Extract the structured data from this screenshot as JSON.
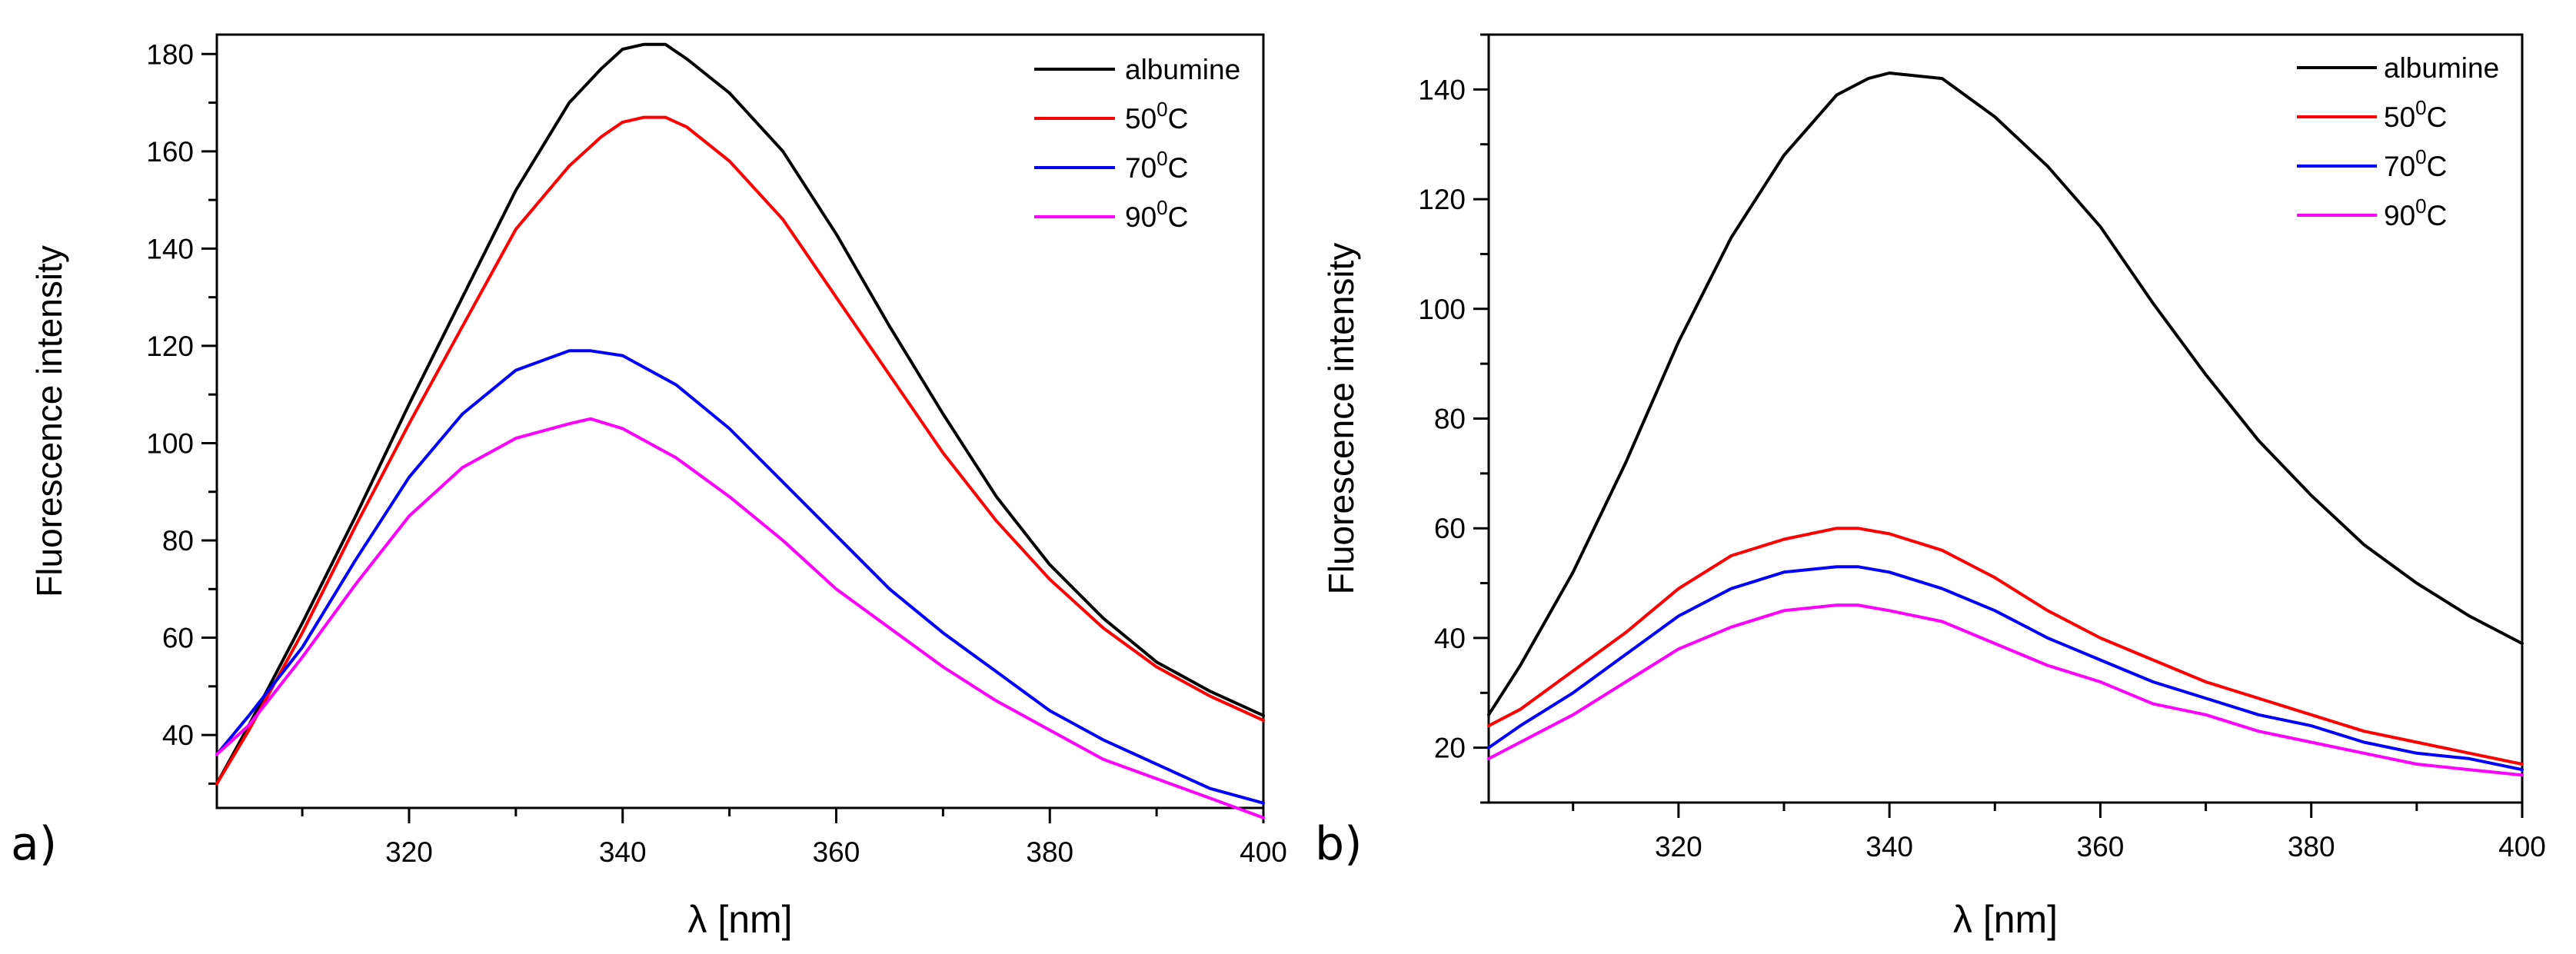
{
  "colors": {
    "albumine": "#000000",
    "c50": "#ff0000",
    "c70": "#0000ff",
    "c90": "#ff00ff"
  },
  "chart_data": [
    {
      "panel_label": "a)",
      "type": "line",
      "title": "",
      "xlabel": "λ [nm]",
      "ylabel": "Fluorescence intensity",
      "xlim": [
        302,
        400
      ],
      "ylim": [
        25,
        184
      ],
      "xticks": [
        320,
        340,
        360,
        380,
        400
      ],
      "yticks": [
        40,
        60,
        80,
        100,
        120,
        140,
        160,
        180
      ],
      "legend_position": "top-right",
      "series": [
        {
          "name": "albumine",
          "label_main": "albumine",
          "label_sup": "",
          "label_tail": "",
          "color_key": "albumine",
          "x": [
            302,
            305,
            310,
            315,
            320,
            325,
            330,
            335,
            338,
            340,
            342,
            344,
            346,
            350,
            355,
            360,
            365,
            370,
            375,
            380,
            385,
            390,
            395,
            400
          ],
          "y": [
            30,
            42,
            63,
            85,
            108,
            130,
            152,
            170,
            177,
            181,
            182,
            182,
            179,
            172,
            160,
            143,
            124,
            106,
            89,
            75,
            64,
            55,
            49,
            44
          ]
        },
        {
          "name": "50°C",
          "label_main": "50",
          "label_sup": "0",
          "label_tail": "C",
          "color_key": "c50",
          "x": [
            302,
            305,
            310,
            315,
            320,
            325,
            330,
            335,
            338,
            340,
            342,
            344,
            346,
            350,
            355,
            360,
            365,
            370,
            375,
            380,
            385,
            390,
            395,
            400
          ],
          "y": [
            30,
            41,
            61,
            83,
            104,
            124,
            144,
            157,
            163,
            166,
            167,
            167,
            165,
            158,
            146,
            130,
            114,
            98,
            84,
            72,
            62,
            54,
            48,
            43
          ]
        },
        {
          "name": "70°C",
          "label_main": "70",
          "label_sup": "0",
          "label_tail": "C",
          "color_key": "c70",
          "x": [
            302,
            305,
            310,
            315,
            320,
            325,
            330,
            335,
            337,
            340,
            345,
            350,
            355,
            360,
            365,
            370,
            375,
            380,
            385,
            390,
            395,
            400
          ],
          "y": [
            36,
            44,
            58,
            76,
            93,
            106,
            115,
            119,
            119,
            118,
            112,
            103,
            92,
            81,
            70,
            61,
            53,
            45,
            39,
            34,
            29,
            26
          ]
        },
        {
          "name": "90°C",
          "label_main": "90",
          "label_sup": "0",
          "label_tail": "C",
          "color_key": "c90",
          "x": [
            302,
            305,
            310,
            315,
            320,
            325,
            330,
            335,
            337,
            340,
            345,
            350,
            355,
            360,
            365,
            370,
            375,
            380,
            385,
            390,
            395,
            400
          ],
          "y": [
            36,
            42,
            56,
            71,
            85,
            95,
            101,
            104,
            105,
            103,
            97,
            89,
            80,
            70,
            62,
            54,
            47,
            41,
            35,
            31,
            27,
            23
          ]
        }
      ]
    },
    {
      "panel_label": "b)",
      "type": "line",
      "title": "",
      "xlabel": "λ [nm]",
      "ylabel": "Fluorescence intensity",
      "xlim": [
        302,
        400
      ],
      "ylim": [
        10,
        150
      ],
      "xticks": [
        320,
        340,
        360,
        380,
        400
      ],
      "yticks": [
        20,
        40,
        60,
        80,
        100,
        120,
        140
      ],
      "legend_position": "top-right",
      "series": [
        {
          "name": "albumine",
          "label_main": "albumine",
          "label_sup": "",
          "label_tail": "",
          "color_key": "albumine",
          "x": [
            302,
            305,
            310,
            315,
            320,
            325,
            330,
            335,
            338,
            340,
            345,
            350,
            355,
            360,
            365,
            370,
            375,
            380,
            385,
            390,
            395,
            400
          ],
          "y": [
            26,
            35,
            52,
            72,
            94,
            113,
            128,
            139,
            142,
            143,
            142,
            135,
            126,
            115,
            101,
            88,
            76,
            66,
            57,
            50,
            44,
            39
          ]
        },
        {
          "name": "50°C",
          "label_main": "50",
          "label_sup": "0",
          "label_tail": "C",
          "color_key": "c50",
          "x": [
            302,
            305,
            310,
            315,
            320,
            325,
            330,
            335,
            337,
            340,
            345,
            350,
            355,
            360,
            365,
            370,
            375,
            380,
            385,
            390,
            395,
            400
          ],
          "y": [
            24,
            27,
            34,
            41,
            49,
            55,
            58,
            60,
            60,
            59,
            56,
            51,
            45,
            40,
            36,
            32,
            29,
            26,
            23,
            21,
            19,
            17
          ]
        },
        {
          "name": "70°C",
          "label_main": "70",
          "label_sup": "0",
          "label_tail": "C",
          "color_key": "c70",
          "x": [
            302,
            305,
            310,
            315,
            320,
            325,
            330,
            335,
            337,
            340,
            345,
            350,
            355,
            360,
            365,
            370,
            375,
            380,
            385,
            390,
            395,
            400
          ],
          "y": [
            20,
            24,
            30,
            37,
            44,
            49,
            52,
            53,
            53,
            52,
            49,
            45,
            40,
            36,
            32,
            29,
            26,
            24,
            21,
            19,
            18,
            16
          ]
        },
        {
          "name": "90°C",
          "label_main": "90",
          "label_sup": "0",
          "label_tail": "C",
          "color_key": "c90",
          "x": [
            302,
            305,
            310,
            315,
            320,
            325,
            330,
            335,
            337,
            340,
            345,
            350,
            355,
            360,
            365,
            370,
            375,
            380,
            385,
            390,
            395,
            400
          ],
          "y": [
            18,
            21,
            26,
            32,
            38,
            42,
            45,
            46,
            46,
            45,
            43,
            39,
            35,
            32,
            28,
            26,
            23,
            21,
            19,
            17,
            16,
            15
          ]
        }
      ]
    }
  ]
}
